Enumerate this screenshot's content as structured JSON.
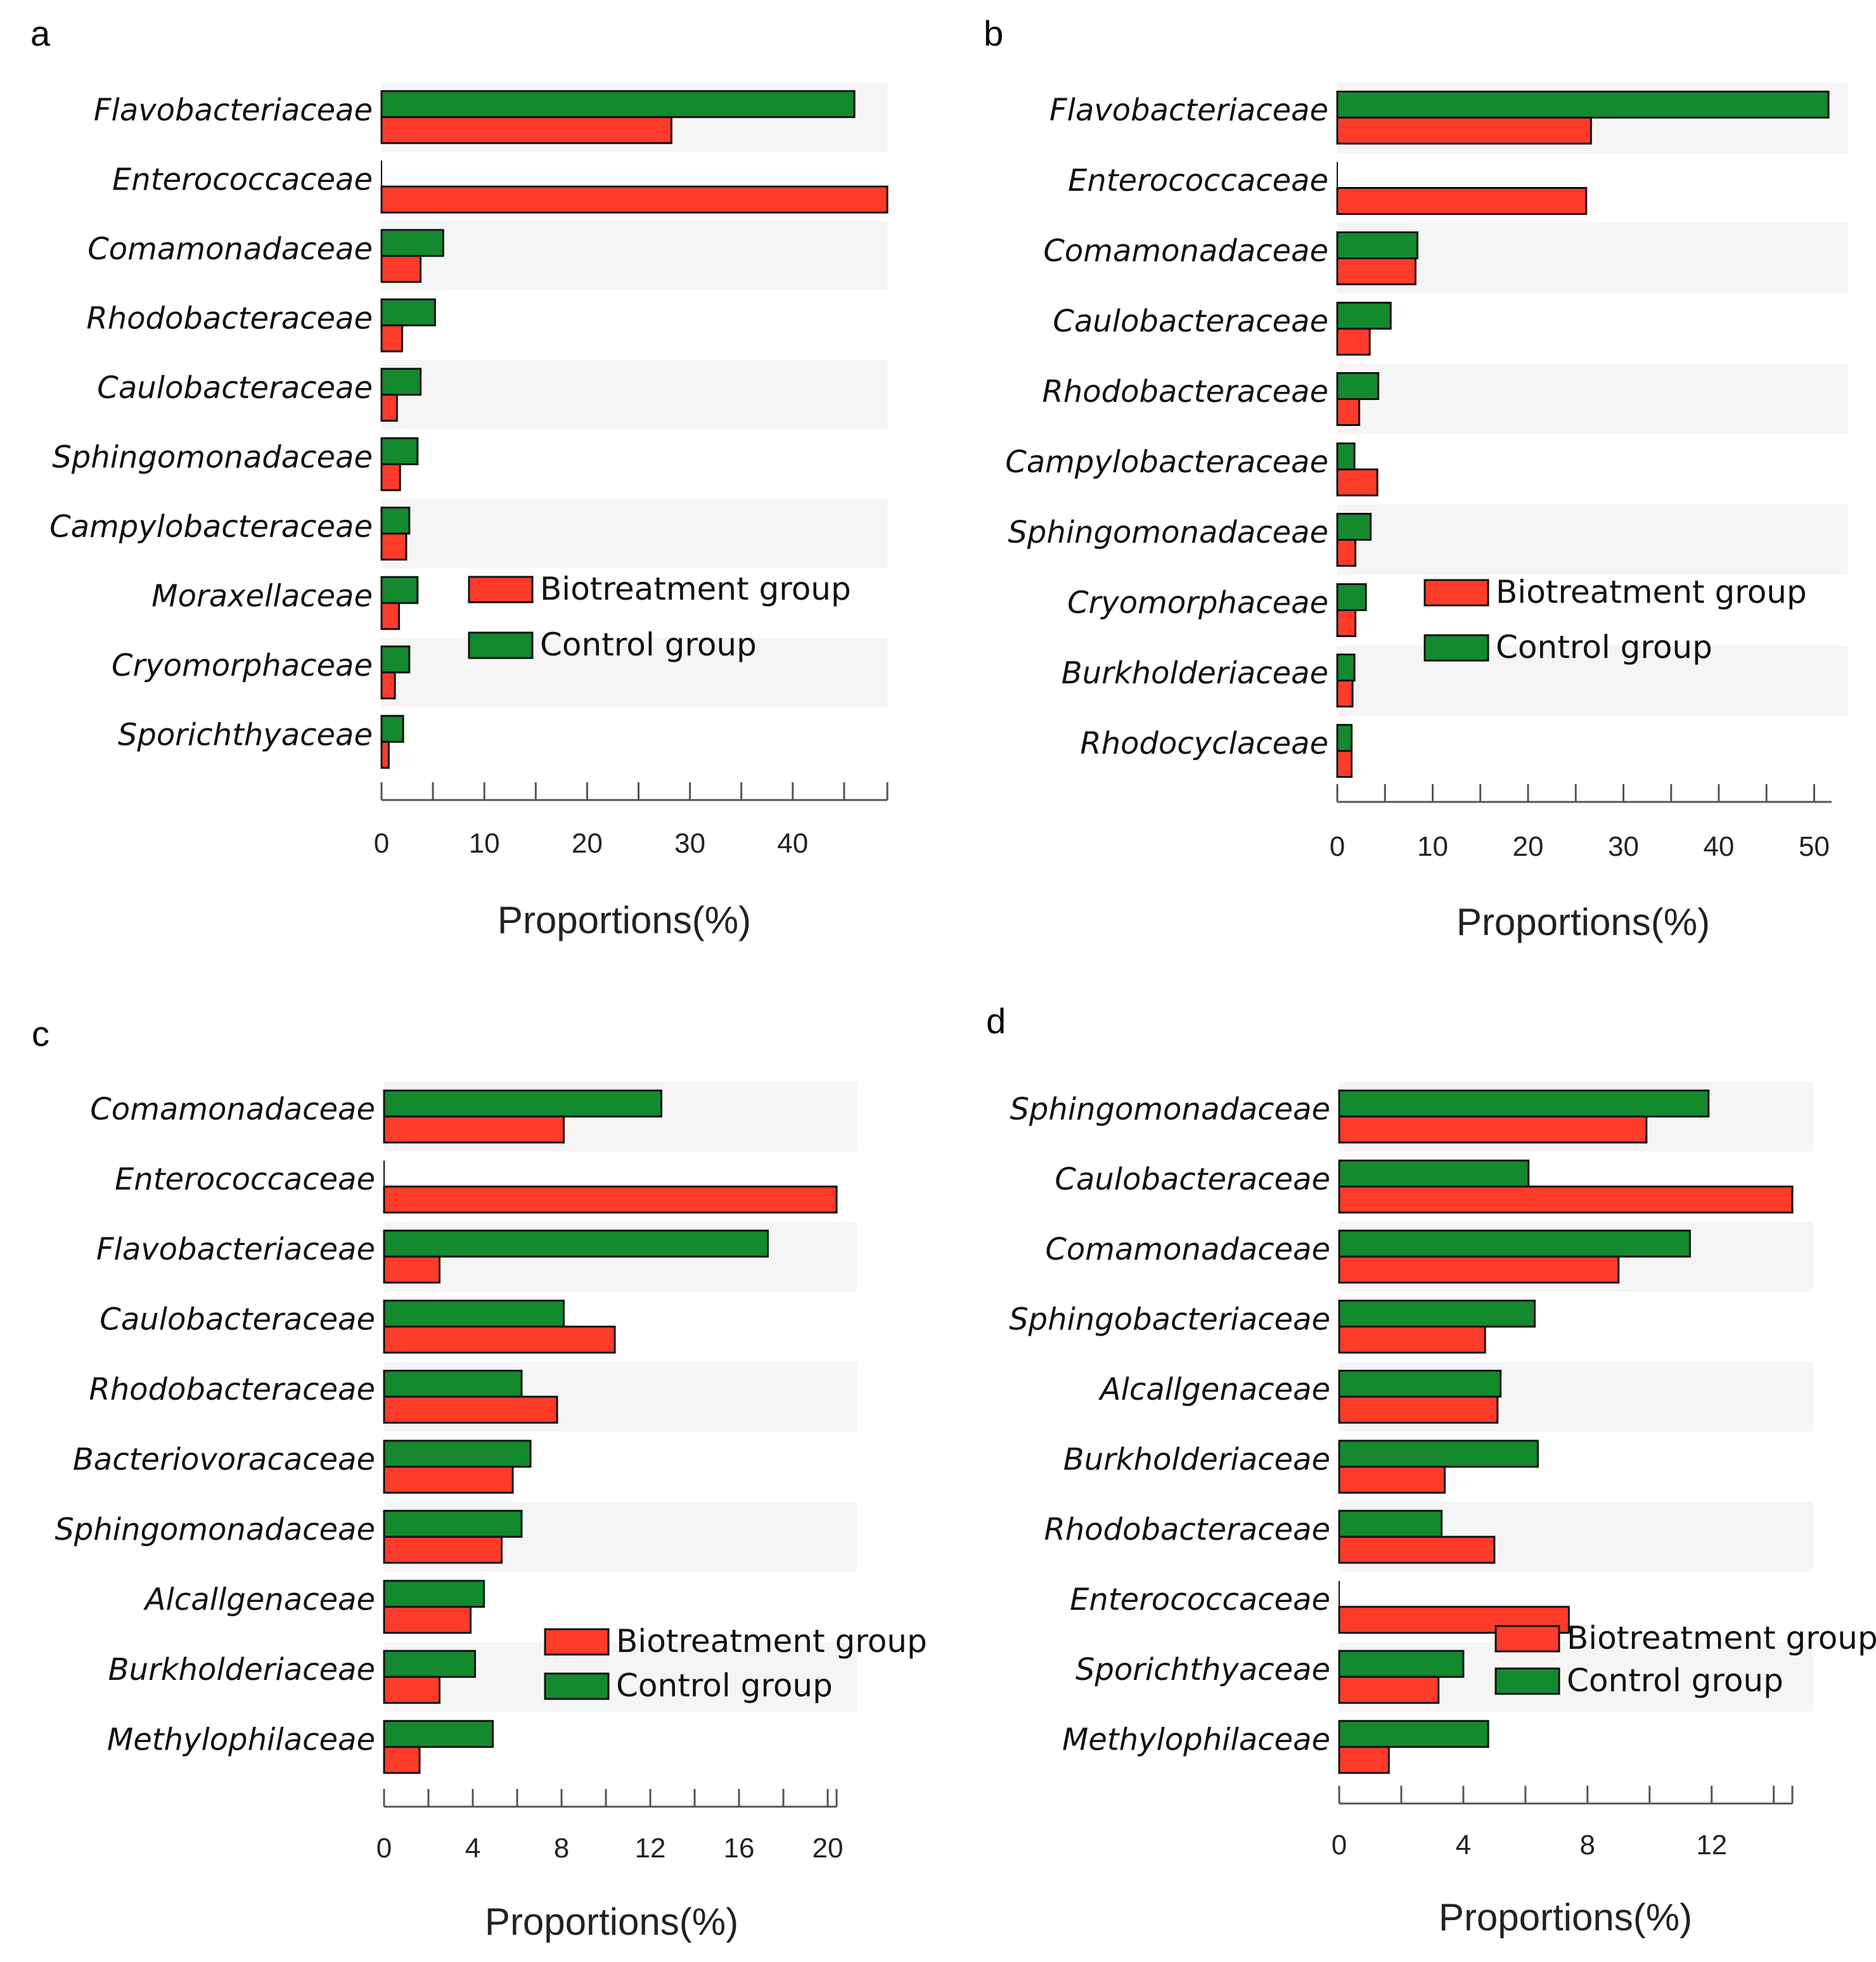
{
  "colors": {
    "biotreatment": "#ff3b2a",
    "control": "#138a2e",
    "stripe": "#f5f5f5",
    "outline": "#111111",
    "axis": "#555555"
  },
  "chart_data": [
    {
      "panel": "a",
      "type": "bar",
      "orientation": "horizontal",
      "categories": [
        "Flavobacteriaceae",
        "Enterococcaceae",
        "Comamonadaceae",
        "Rhodobacteraceae",
        "Caulobacteraceae",
        "Sphingomonadaceae",
        "Campylobacteraceae",
        "Moraxellaceae",
        "Cryomorphaceae",
        "Sporichthyaceae"
      ],
      "series": [
        {
          "name": "Control group",
          "key": "control",
          "values": [
            46.0,
            0.0,
            6.0,
            5.2,
            3.8,
            3.5,
            2.7,
            3.5,
            2.7,
            2.1
          ]
        },
        {
          "name": "Biotreatment group",
          "key": "biotreatment",
          "values": [
            28.2,
            49.2,
            3.8,
            2.0,
            1.5,
            1.8,
            2.4,
            1.7,
            1.3,
            0.7
          ]
        }
      ],
      "xticks": [
        "0",
        "10",
        "20",
        "30",
        "40"
      ],
      "xtick_values": [
        0,
        10,
        20,
        30,
        40
      ],
      "xlim": [
        0,
        49.2
      ],
      "xlabel": "Proportions(%)",
      "legend_position": "right",
      "legend": [
        "Biotreatment group",
        "Control group"
      ]
    },
    {
      "panel": "b",
      "type": "bar",
      "orientation": "horizontal",
      "categories": [
        "Flavobacteriaceae",
        "Enterococcaceae",
        "Comamonadaceae",
        "Caulobacteraceae",
        "Rhodobacteraceae",
        "Campylobacteraceae",
        "Sphingomonadaceae",
        "Cryomorphaceae",
        "Burkholderiaceae",
        "Rhodocyclaceae"
      ],
      "series": [
        {
          "name": "Control group",
          "key": "control",
          "values": [
            51.5,
            0.0,
            8.4,
            5.6,
            4.3,
            1.8,
            3.5,
            3.0,
            1.8,
            1.5
          ]
        },
        {
          "name": "Biotreatment group",
          "key": "biotreatment",
          "values": [
            26.6,
            26.1,
            8.2,
            3.4,
            2.3,
            4.2,
            1.9,
            1.9,
            1.6,
            1.5
          ]
        }
      ],
      "xticks": [
        "0",
        "10",
        "20",
        "30",
        "40",
        "50"
      ],
      "xtick_values": [
        0,
        10,
        20,
        30,
        40,
        50
      ],
      "xlim": [
        0,
        51.5
      ],
      "xlabel": "Proportions(%)",
      "legend_position": "right",
      "legend": [
        "Biotreatment group",
        "Control group"
      ]
    },
    {
      "panel": "c",
      "type": "bar",
      "orientation": "horizontal",
      "categories": [
        "Comamonadaceae",
        "Enterococcaceae",
        "Flavobacteriaceae",
        "Caulobacteraceae",
        "Rhodobacteraceae",
        "Bacteriovoracaceae",
        "Sphingomonadaceae",
        "Alcallgenaceae",
        "Burkholderiaceae",
        "Methylophilaceae"
      ],
      "series": [
        {
          "name": "Control group",
          "key": "control",
          "values": [
            12.5,
            0.0,
            17.3,
            8.1,
            6.2,
            6.6,
            6.2,
            4.5,
            4.1,
            4.9
          ]
        },
        {
          "name": "Biotreatment group",
          "key": "biotreatment",
          "values": [
            8.1,
            20.4,
            2.5,
            10.4,
            7.8,
            5.8,
            5.3,
            3.9,
            2.5,
            1.6
          ]
        }
      ],
      "xticks": [
        "0",
        "4",
        "8",
        "12",
        "16",
        "20"
      ],
      "xtick_values": [
        0,
        4,
        8,
        12,
        16,
        20
      ],
      "xlim": [
        0,
        20.4
      ],
      "xlabel": "Proportions(%)",
      "legend_position": "bottom-right",
      "legend": [
        "Biotreatment group",
        "Control group"
      ]
    },
    {
      "panel": "d",
      "type": "bar",
      "orientation": "horizontal",
      "categories": [
        "Sphingomonadaceae",
        "Caulobacteraceae",
        "Comamonadaceae",
        "Sphingobacteriaceae",
        "Alcallgenaceae",
        "Burkholderiaceae",
        "Rhodobacteraceae",
        "Enterococcaceae",
        "Sporichthyaceae",
        "Methylophilaceae"
      ],
      "series": [
        {
          "name": "Control group",
          "key": "control",
          "values": [
            11.9,
            6.1,
            11.3,
            6.3,
            5.2,
            6.4,
            3.3,
            0.0,
            4.0,
            4.8
          ]
        },
        {
          "name": "Biotreatment group",
          "key": "biotreatment",
          "values": [
            9.9,
            14.6,
            9.0,
            4.7,
            5.1,
            3.4,
            5.0,
            7.4,
            3.2,
            1.6
          ]
        }
      ],
      "xticks": [
        "0",
        "4",
        "8",
        "12"
      ],
      "xtick_values": [
        0,
        4,
        8,
        12
      ],
      "xlim": [
        0,
        14.6
      ],
      "xlabel": "Proportions(%)",
      "legend_position": "bottom-right",
      "legend": [
        "Biotreatment group",
        "Control group"
      ]
    }
  ]
}
